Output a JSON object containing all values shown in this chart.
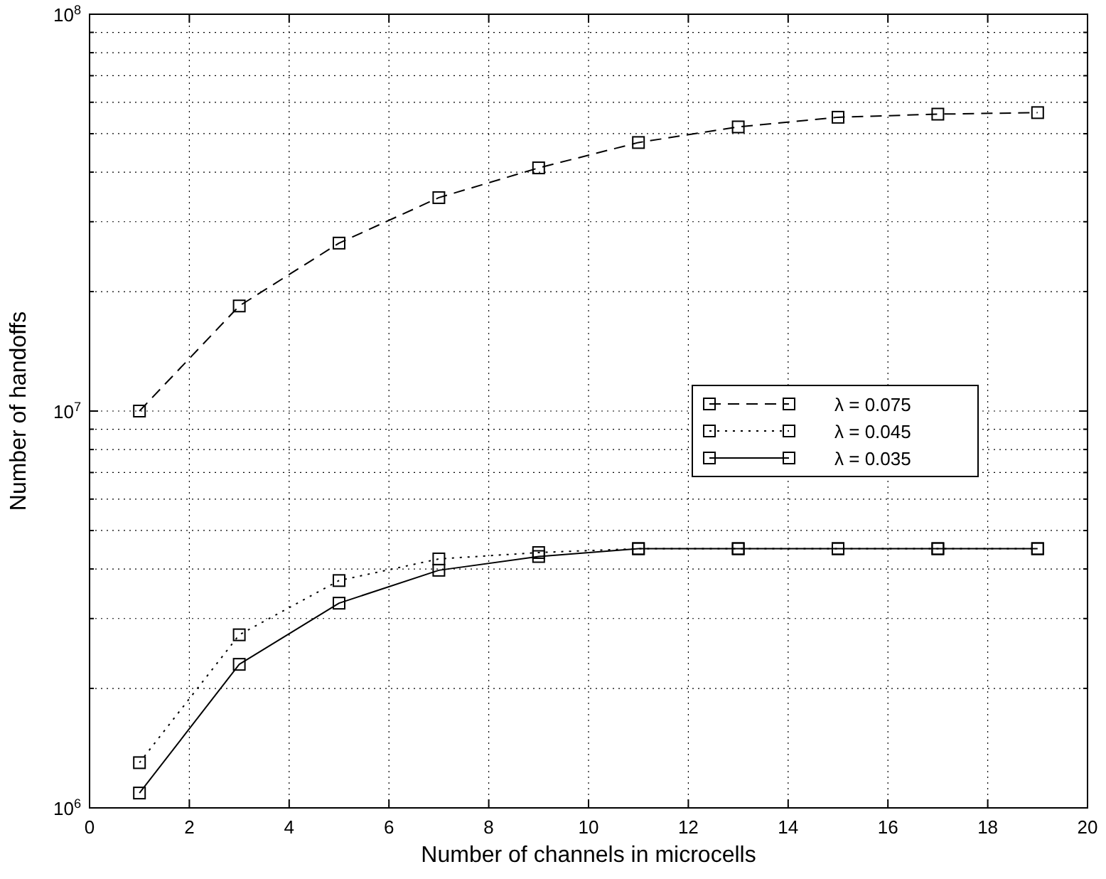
{
  "chart_data": {
    "type": "line",
    "xlabel": "Number of channels in microcells",
    "ylabel": "Number of handoffs",
    "x": [
      1,
      3,
      5,
      7,
      9,
      11,
      13,
      15,
      17,
      19
    ],
    "series": [
      {
        "name": "λ = 0.075",
        "color": "#000000",
        "line_style": "dashed",
        "values": [
          10000000,
          18400000,
          26500000,
          34500000,
          41000000,
          47500000,
          52000000,
          55000000,
          56000000,
          56500000
        ]
      },
      {
        "name": "λ = 0.045",
        "color": "#000000",
        "line_style": "dotted",
        "values": [
          1300000,
          2730000,
          3740000,
          4240000,
          4400000,
          4500000,
          4500000,
          4500000,
          4500000,
          4500000
        ]
      },
      {
        "name": "λ = 0.035",
        "color": "#000000",
        "line_style": "solid",
        "values": [
          1090000,
          2300000,
          3280000,
          3970000,
          4300000,
          4500000,
          4500000,
          4500000,
          4500000,
          4500000
        ]
      }
    ],
    "log": "y",
    "marker": "square",
    "grid": true,
    "legend": "right",
    "xlim": [
      0,
      20
    ],
    "xticks": [
      0,
      2,
      4,
      6,
      8,
      10,
      12,
      14,
      16,
      18,
      20
    ],
    "ylim": [
      1000000,
      100000000
    ],
    "yticks": [
      {
        "value": 1000000,
        "label": "10$^{6}$"
      },
      {
        "value": 2000000,
        "label": null
      },
      {
        "value": 3000000,
        "label": null
      },
      {
        "value": 4000000,
        "label": null
      },
      {
        "value": 5000000,
        "label": null
      },
      {
        "value": 6000000,
        "label": null
      },
      {
        "value": 7000000,
        "label": null
      },
      {
        "value": 8000000,
        "label": null
      },
      {
        "value": 9000000,
        "label": null
      },
      {
        "value": 10000000,
        "label": "10$^{7}$"
      },
      {
        "value": 20000000,
        "label": null
      },
      {
        "value": 30000000,
        "label": null
      },
      {
        "value": 40000000,
        "label": null
      },
      {
        "value": 50000000,
        "label": null
      },
      {
        "value": 60000000,
        "label": null
      },
      {
        "value": 70000000,
        "label": null
      },
      {
        "value": 80000000,
        "label": null
      },
      {
        "value": 90000000,
        "label": null
      },
      {
        "value": 100000000,
        "label": "10$^{8}$"
      }
    ]
  }
}
